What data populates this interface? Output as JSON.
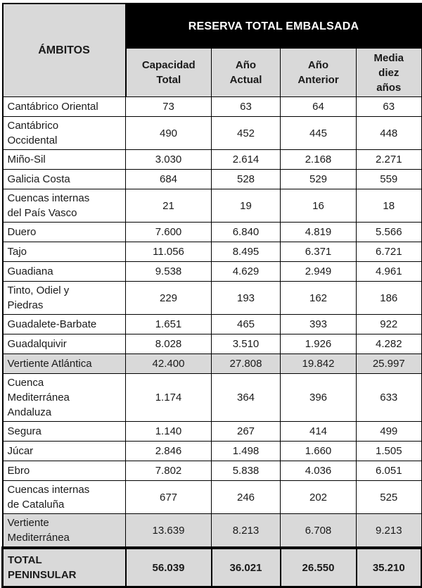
{
  "colors": {
    "group_header_bg": "#000000",
    "group_header_text": "#ffffff",
    "shaded_row_bg": "#d9d9d9",
    "border": "#000000",
    "text": "#1a1a1a",
    "page_bg": "#ffffff"
  },
  "table": {
    "corner_header": "ÁMBITOS",
    "group_header": "RESERVA TOTAL EMBALSADA",
    "columns": [
      "Capacidad\nTotal",
      "Año\nActual",
      "Año\nAnterior",
      "Media\ndiez\naños"
    ],
    "rows": [
      {
        "label": "Cantábrico Oriental",
        "values": [
          "73",
          "63",
          "64",
          "63"
        ],
        "type": "normal"
      },
      {
        "label": "Cantábrico\nOccidental",
        "values": [
          "490",
          "452",
          "445",
          "448"
        ],
        "type": "normal"
      },
      {
        "label": "Miño-Sil",
        "values": [
          "3.030",
          "2.614",
          "2.168",
          "2.271"
        ],
        "type": "normal"
      },
      {
        "label": "Galicia Costa",
        "values": [
          "684",
          "528",
          "529",
          "559"
        ],
        "type": "normal"
      },
      {
        "label": "Cuencas internas\ndel País Vasco",
        "values": [
          "21",
          "19",
          "16",
          "18"
        ],
        "type": "normal"
      },
      {
        "label": "Duero",
        "values": [
          "7.600",
          "6.840",
          "4.819",
          "5.566"
        ],
        "type": "normal"
      },
      {
        "label": "Tajo",
        "values": [
          "11.056",
          "8.495",
          "6.371",
          "6.721"
        ],
        "type": "normal"
      },
      {
        "label": "Guadiana",
        "values": [
          "9.538",
          "4.629",
          "2.949",
          "4.961"
        ],
        "type": "normal"
      },
      {
        "label": "Tinto, Odiel y\nPiedras",
        "values": [
          "229",
          "193",
          "162",
          "186"
        ],
        "type": "normal"
      },
      {
        "label": "Guadalete-Barbate",
        "values": [
          "1.651",
          "465",
          "393",
          "922"
        ],
        "type": "normal"
      },
      {
        "label": "Guadalquivir",
        "values": [
          "8.028",
          "3.510",
          "1.926",
          "4.282"
        ],
        "type": "normal"
      },
      {
        "label": "Vertiente Atlántica",
        "values": [
          "42.400",
          "27.808",
          "19.842",
          "25.997"
        ],
        "type": "subtotal"
      },
      {
        "label": "Cuenca\nMediterránea\nAndaluza",
        "values": [
          "1.174",
          "364",
          "396",
          "633"
        ],
        "type": "normal"
      },
      {
        "label": "Segura",
        "values": [
          "1.140",
          "267",
          "414",
          "499"
        ],
        "type": "normal"
      },
      {
        "label": "Júcar",
        "values": [
          "2.846",
          "1.498",
          "1.660",
          "1.505"
        ],
        "type": "normal"
      },
      {
        "label": "Ebro",
        "values": [
          "7.802",
          "5.838",
          "4.036",
          "6.051"
        ],
        "type": "normal"
      },
      {
        "label": "Cuencas internas\nde Cataluña",
        "values": [
          "677",
          "246",
          "202",
          "525"
        ],
        "type": "normal"
      },
      {
        "label": "Vertiente\nMediterránea",
        "values": [
          "13.639",
          "8.213",
          "6.708",
          "9.213"
        ],
        "type": "subtotal"
      },
      {
        "label": "TOTAL\nPENINSULAR",
        "values": [
          "56.039",
          "36.021",
          "26.550",
          "35.210"
        ],
        "type": "total"
      }
    ]
  }
}
